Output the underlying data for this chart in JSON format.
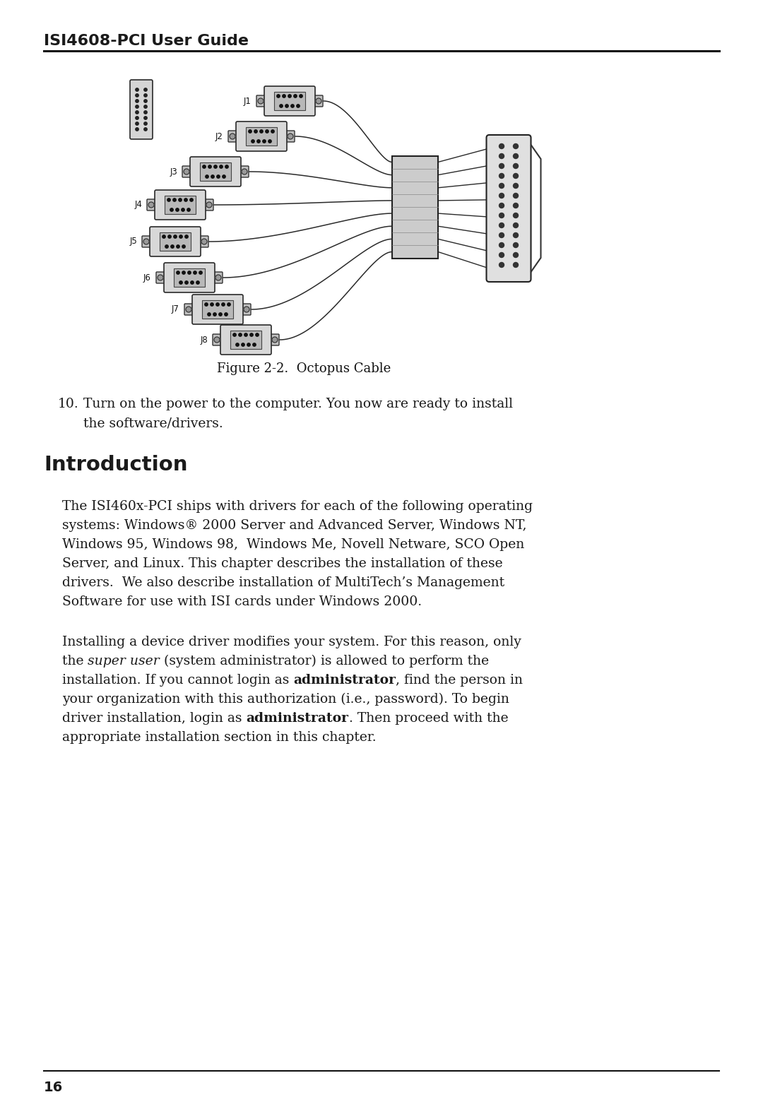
{
  "header_text": "ISI4608-PCI User Guide",
  "figure_caption": "Figure 2-2.  Octopus Cable",
  "item10_line1": "Turn on the power to the computer. You now are ready to install",
  "item10_line2": "the software/drivers.",
  "section_title": "Introduction",
  "para1_lines": [
    "The ISI460x-PCI ships with drivers for each of the following operating",
    "systems: Windows® 2000 Server and Advanced Server, Windows NT,",
    "Windows 95, Windows 98,  Windows Me, Novell Netware, SCO Open",
    "Server, and Linux. This chapter describes the installation of these",
    "drivers.  We also describe installation of MultiTech’s Management",
    "Software for use with ISI cards under Windows 2000."
  ],
  "para2_line1": "Installing a device driver modifies your system. For this reason, only",
  "para2_line2": "the super user (system administrator) is allowed to perform the",
  "para2_line3": "installation. If you cannot login as administrator, find the person in",
  "para2_line4": "your organization with this authorization (i.e., password). To begin",
  "para2_line5": "driver installation, login as administrator. Then proceed with the",
  "para2_line6": "appropriate installation section in this chapter.",
  "page_number": "16",
  "bg_color": "#ffffff",
  "text_color": "#1a1a1a",
  "header_fontsize": 16,
  "body_fontsize": 13.5,
  "section_fontsize": 21,
  "caption_fontsize": 13,
  "page_fontsize": 14
}
